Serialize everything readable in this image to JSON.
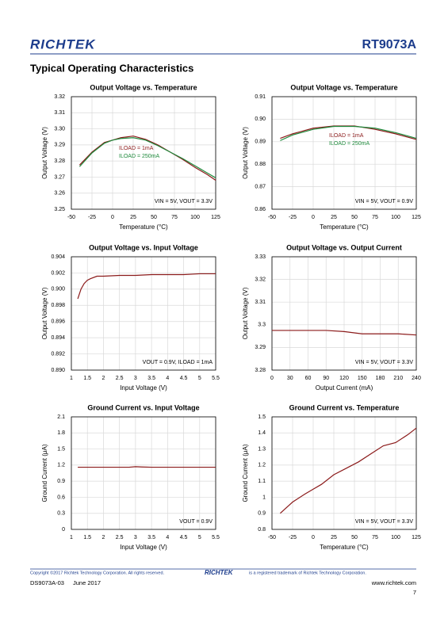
{
  "header": {
    "logo": "RICHTEK",
    "part": "RT9073A"
  },
  "section_title": "Typical Operating Characteristics",
  "chart_data": [
    {
      "type": "line",
      "title": "Output Voltage vs. Temperature",
      "x_label": "Temperature (°C)",
      "y_label": "Output Voltage (V)",
      "annotation": "VIN = 5V, VOUT = 3.3V",
      "x": [
        -40,
        -25,
        -10,
        0,
        10,
        25,
        40,
        55,
        70,
        85,
        100,
        115,
        125
      ],
      "series": [
        {
          "name": "ILOAD = 1mA",
          "color": "#8b1a1a",
          "values": [
            3.2775,
            3.2855,
            3.2915,
            3.293,
            3.2945,
            3.2955,
            3.2935,
            3.29,
            3.2855,
            3.281,
            3.276,
            3.2715,
            3.268
          ]
        },
        {
          "name": "ILOAD = 250mA",
          "color": "#1f8a3c",
          "values": [
            3.2765,
            3.285,
            3.291,
            3.293,
            3.294,
            3.2945,
            3.293,
            3.2895,
            3.2855,
            3.2815,
            3.277,
            3.2725,
            3.2695
          ]
        }
      ],
      "xlim": [
        -50,
        125
      ],
      "xticks": [
        -50,
        -25,
        0,
        25,
        50,
        75,
        100,
        125
      ],
      "ylim": [
        3.25,
        3.32
      ],
      "yticks": [
        3.25,
        3.26,
        3.27,
        3.28,
        3.29,
        {
          "value": 3.3,
          "label": "3.30"
        },
        3.31,
        3.32
      ],
      "grid": true
    },
    {
      "type": "line",
      "title": "Output Voltage vs. Temperature",
      "x_label": "Temperature (°C)",
      "y_label": "Output Voltage (V)",
      "annotation": "VIN = 5V, VOUT = 0.9V",
      "x": [
        -40,
        -25,
        -10,
        0,
        25,
        50,
        75,
        100,
        125
      ],
      "series": [
        {
          "name": "ILOAD = 1mA",
          "color": "#8b1a1a",
          "values": [
            0.8915,
            0.8935,
            0.895,
            0.896,
            0.897,
            0.897,
            0.8955,
            0.8935,
            0.891
          ]
        },
        {
          "name": "ILOAD = 250mA",
          "color": "#1f8a3c",
          "values": [
            0.8905,
            0.893,
            0.8945,
            0.8955,
            0.8968,
            0.8968,
            0.896,
            0.894,
            0.8915
          ]
        }
      ],
      "xlim": [
        -50,
        125
      ],
      "xticks": [
        -50,
        -25,
        0,
        25,
        50,
        75,
        100,
        125
      ],
      "ylim": [
        0.86,
        0.91
      ],
      "yticks": [
        0.86,
        0.87,
        0.88,
        0.89,
        {
          "value": 0.9,
          "label": "0.90"
        },
        0.91
      ],
      "grid": true
    },
    {
      "type": "line",
      "title": "Output Voltage vs. Input Voltage",
      "x_label": "Input Voltage (V)",
      "y_label": "Output Voltage (V)",
      "annotation": "VOUT = 0.9V, ILOAD = 1mA",
      "x": [
        1.2,
        1.3,
        1.4,
        1.5,
        1.6,
        1.8,
        2,
        2.5,
        3,
        3.5,
        4,
        4.5,
        5,
        5.5
      ],
      "series": [
        {
          "color": "#8b1a1a",
          "values": [
            0.8988,
            0.9,
            0.9007,
            0.9011,
            0.9013,
            0.9016,
            0.9016,
            0.9017,
            0.9017,
            0.9018,
            0.9018,
            0.9018,
            0.9019,
            0.9019
          ]
        }
      ],
      "xlim": [
        1,
        5.5
      ],
      "xticks": [
        1,
        1.5,
        2,
        2.5,
        3,
        3.5,
        4,
        4.5,
        5,
        5.5
      ],
      "ylim": [
        0.89,
        0.904
      ],
      "yticks": [
        {
          "value": 0.89,
          "label": "0.890"
        },
        0.892,
        0.894,
        0.896,
        0.898,
        {
          "value": 0.9,
          "label": "0.900"
        },
        0.902,
        0.904
      ],
      "grid": true
    },
    {
      "type": "line",
      "title": "Output Voltage vs. Output Current",
      "x_label": "Output Current (mA)",
      "y_label": "Output Voltage (V)",
      "annotation": "VIN = 5V, VOUT = 3.3V",
      "x": [
        0,
        30,
        60,
        90,
        120,
        150,
        180,
        210,
        240
      ],
      "series": [
        {
          "color": "#8b1a1a",
          "values": [
            3.2975,
            3.2975,
            3.2975,
            3.2975,
            3.297,
            3.296,
            3.296,
            3.296,
            3.2955
          ]
        }
      ],
      "xlim": [
        0,
        240
      ],
      "xticks": [
        0,
        30,
        60,
        90,
        120,
        150,
        180,
        210,
        240
      ],
      "ylim": [
        3.28,
        3.33
      ],
      "yticks": [
        3.28,
        3.29,
        3.3,
        3.31,
        3.32,
        3.33
      ],
      "grid": true
    },
    {
      "type": "line",
      "title": "Ground Current vs. Input Voltage",
      "x_label": "Input Voltage (V)",
      "y_label": "Ground Current (μA)",
      "annotation": "VOUT = 0.9V",
      "x": [
        1.2,
        2,
        2.5,
        2.8,
        3,
        3.2,
        3.5,
        4,
        4.5,
        5,
        5.5
      ],
      "series": [
        {
          "color": "#8b1a1a",
          "values": [
            1.16,
            1.16,
            1.16,
            1.16,
            1.17,
            1.165,
            1.16,
            1.16,
            1.16,
            1.16,
            1.16
          ]
        }
      ],
      "xlim": [
        1,
        5.5
      ],
      "xticks": [
        1,
        1.5,
        2,
        2.5,
        3,
        3.5,
        4,
        4.5,
        5,
        5.5
      ],
      "ylim": [
        0,
        2.1
      ],
      "yticks": [
        0,
        0.3,
        0.6,
        0.9,
        1.2,
        1.5,
        1.8,
        2.1
      ],
      "grid": true
    },
    {
      "type": "line",
      "title": "Ground Current vs. Temperature",
      "x_label": "Temperature (°C)",
      "y_label": "Ground Current (μA)",
      "annotation": "VIN = 5V, VOUT = 3.3V",
      "x": [
        -40,
        -25,
        -10,
        0,
        10,
        25,
        40,
        55,
        70,
        85,
        100,
        115,
        125
      ],
      "series": [
        {
          "color": "#8b1a1a",
          "values": [
            0.9,
            0.97,
            1.02,
            1.05,
            1.08,
            1.14,
            1.18,
            1.22,
            1.27,
            1.32,
            1.34,
            1.39,
            1.43
          ]
        }
      ],
      "xlim": [
        -50,
        125
      ],
      "xticks": [
        -50,
        -25,
        0,
        25,
        50,
        75,
        100,
        125
      ],
      "ylim": [
        0.8,
        1.5
      ],
      "yticks": [
        0.8,
        0.9,
        1,
        1.1,
        1.2,
        1.3,
        1.4,
        1.5
      ],
      "grid": true
    }
  ],
  "footer": {
    "copyright": "Copyright ©2017 Richtek Technology Corporation. All rights reserved.",
    "logo": "RICHTEK",
    "trademark": "is a registered trademark of Richtek Technology Corporation.",
    "doc": "DS9073A-03",
    "date": "June  2017",
    "url": "www.richtek.com",
    "page": "7"
  }
}
